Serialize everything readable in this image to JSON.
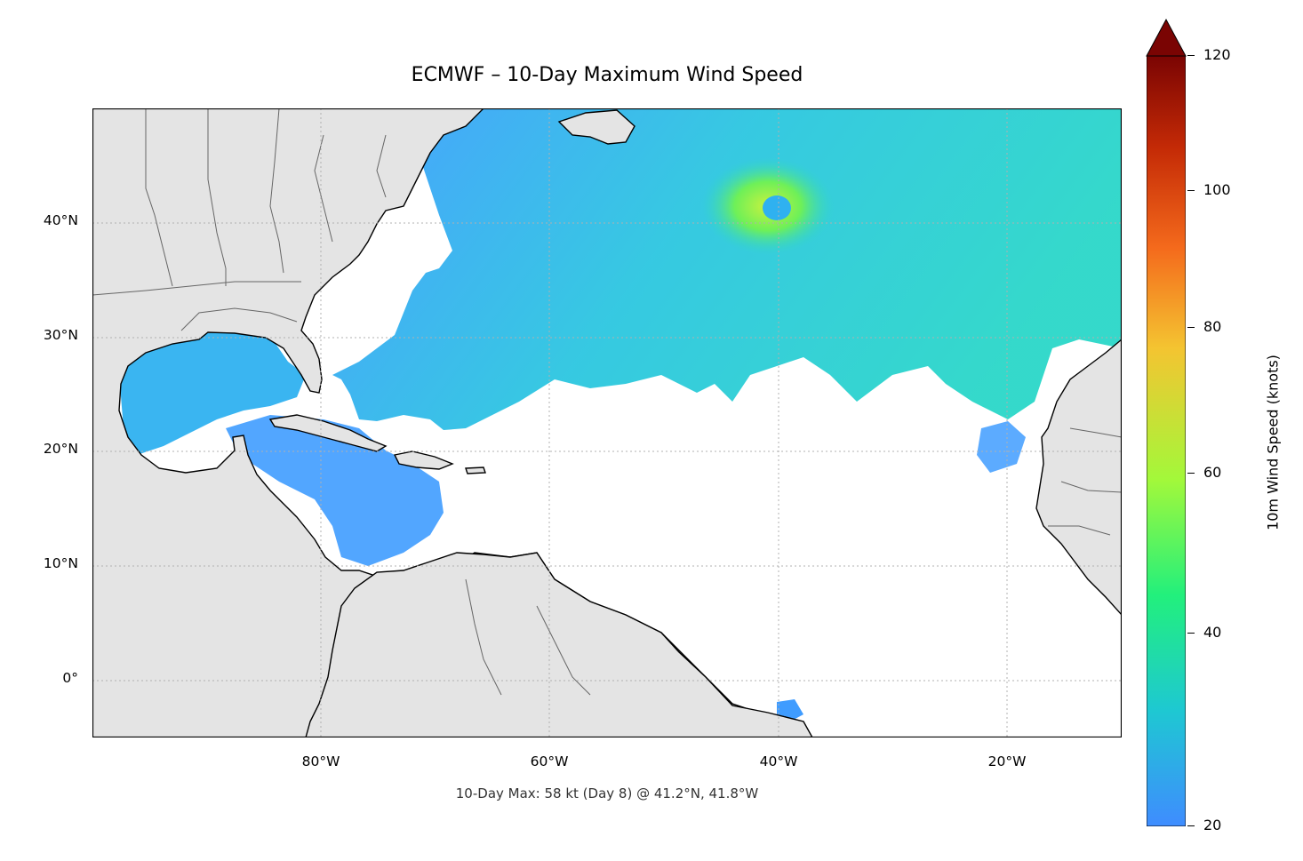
{
  "title": "ECMWF – 10-Day Maximum Wind Speed",
  "footer": "10-Day Max: 58 kt (Day 8) @ 41.2°N, 41.8°W",
  "map": {
    "extent_lon": [
      -100,
      -10
    ],
    "extent_lat": [
      -5,
      50
    ],
    "lat_labels": [
      "40°N",
      "30°N",
      "20°N",
      "10°N",
      "0°"
    ],
    "lon_labels": [
      "80°W",
      "60°W",
      "40°W",
      "20°W"
    ],
    "land_color": "#e4e4e4",
    "coast_color": "#000000",
    "border_color": "#666666",
    "gridlines": true
  },
  "colorbar": {
    "label": "10m Wind Speed (knots)",
    "ticks": [
      "20",
      "40",
      "60",
      "80",
      "100",
      "120"
    ],
    "range": [
      20,
      120
    ],
    "extend": "max",
    "stops": [
      "#3f8cff",
      "#1ec8d2",
      "#22f07c",
      "#a3f83a",
      "#f4c431",
      "#f46a1c",
      "#c42a06",
      "#7a0403"
    ]
  },
  "annotations": {
    "max_point": {
      "speed_kt": 58,
      "day": 8,
      "lat": 41.2,
      "lon": -41.8
    }
  }
}
